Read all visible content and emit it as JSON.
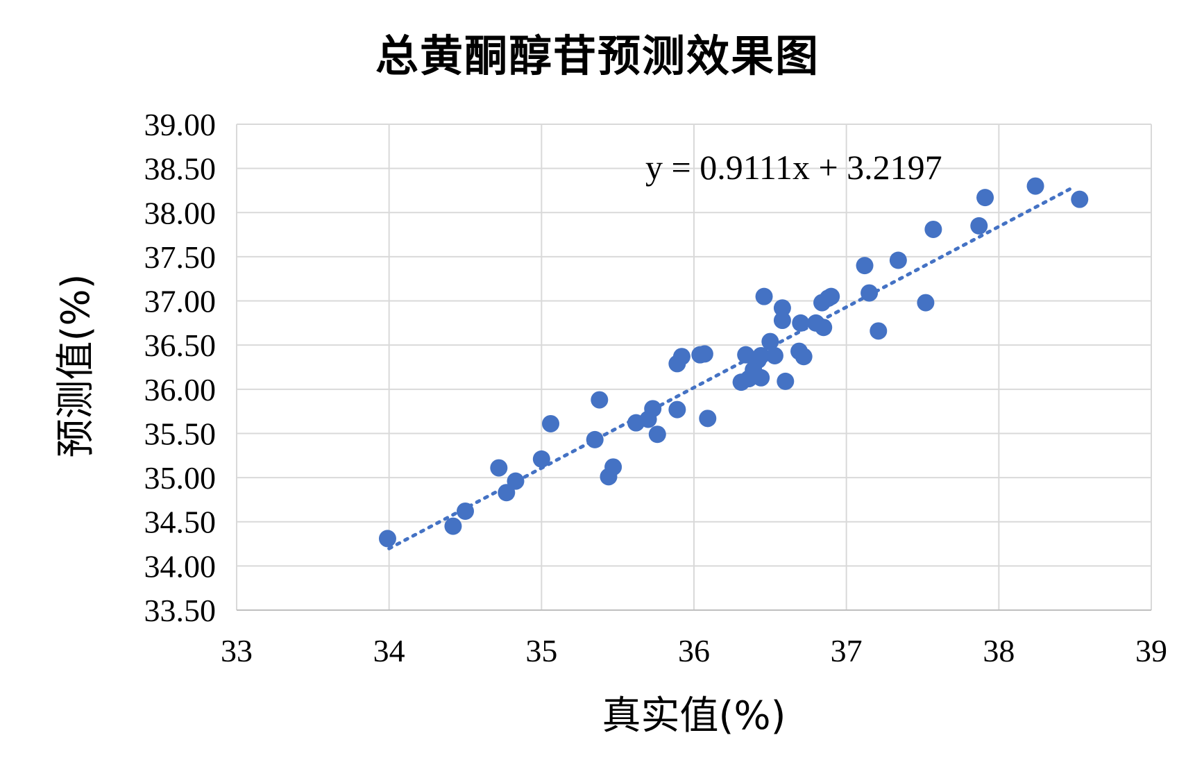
{
  "chart_data": {
    "type": "scatter",
    "title": "总黄酮醇苷预测效果图",
    "xlabel": "真实值(%)",
    "ylabel": "预测值(%)",
    "xlim": [
      33,
      39
    ],
    "ylim": [
      33.5,
      39.0
    ],
    "x_ticks": [
      "33",
      "34",
      "35",
      "36",
      "37",
      "38",
      "39"
    ],
    "y_ticks": [
      "33.50",
      "34.00",
      "34.50",
      "35.00",
      "35.50",
      "36.00",
      "36.50",
      "37.00",
      "37.50",
      "38.00",
      "38.50",
      "39.00"
    ],
    "grid": true,
    "marker_color": "#4472C4",
    "trendline": {
      "type": "linear",
      "slope": 0.9111,
      "intercept": 3.2197,
      "x_range": [
        34.0,
        38.5
      ],
      "style": "dotted",
      "label": "y = 0.9111x + 3.2197"
    },
    "series": [
      {
        "points": [
          [
            33.99,
            34.31
          ],
          [
            34.42,
            34.45
          ],
          [
            34.5,
            34.62
          ],
          [
            34.72,
            35.11
          ],
          [
            34.77,
            34.83
          ],
          [
            34.83,
            34.96
          ],
          [
            35.0,
            35.21
          ],
          [
            35.06,
            35.61
          ],
          [
            35.35,
            35.43
          ],
          [
            35.38,
            35.88
          ],
          [
            35.44,
            35.01
          ],
          [
            35.47,
            35.12
          ],
          [
            35.62,
            35.62
          ],
          [
            35.7,
            35.66
          ],
          [
            35.73,
            35.78
          ],
          [
            35.76,
            35.49
          ],
          [
            35.89,
            35.77
          ],
          [
            35.89,
            36.29
          ],
          [
            35.92,
            36.37
          ],
          [
            36.04,
            36.39
          ],
          [
            36.07,
            36.4
          ],
          [
            36.09,
            35.67
          ],
          [
            36.31,
            36.08
          ],
          [
            36.34,
            36.39
          ],
          [
            36.36,
            36.12
          ],
          [
            36.39,
            36.22
          ],
          [
            36.42,
            36.33
          ],
          [
            36.44,
            36.38
          ],
          [
            36.44,
            36.13
          ],
          [
            36.46,
            37.05
          ],
          [
            36.5,
            36.54
          ],
          [
            36.53,
            36.38
          ],
          [
            36.58,
            36.92
          ],
          [
            36.58,
            36.78
          ],
          [
            36.6,
            36.09
          ],
          [
            36.69,
            36.43
          ],
          [
            36.7,
            36.75
          ],
          [
            36.72,
            36.37
          ],
          [
            36.8,
            36.75
          ],
          [
            36.84,
            36.98
          ],
          [
            36.85,
            36.7
          ],
          [
            36.88,
            37.03
          ],
          [
            36.9,
            37.05
          ],
          [
            37.12,
            37.4
          ],
          [
            37.15,
            37.09
          ],
          [
            37.21,
            36.66
          ],
          [
            37.34,
            37.46
          ],
          [
            37.52,
            36.98
          ],
          [
            37.57,
            37.81
          ],
          [
            37.87,
            37.85
          ],
          [
            37.91,
            38.17
          ],
          [
            38.24,
            38.3
          ],
          [
            38.53,
            38.15
          ]
        ]
      }
    ]
  }
}
